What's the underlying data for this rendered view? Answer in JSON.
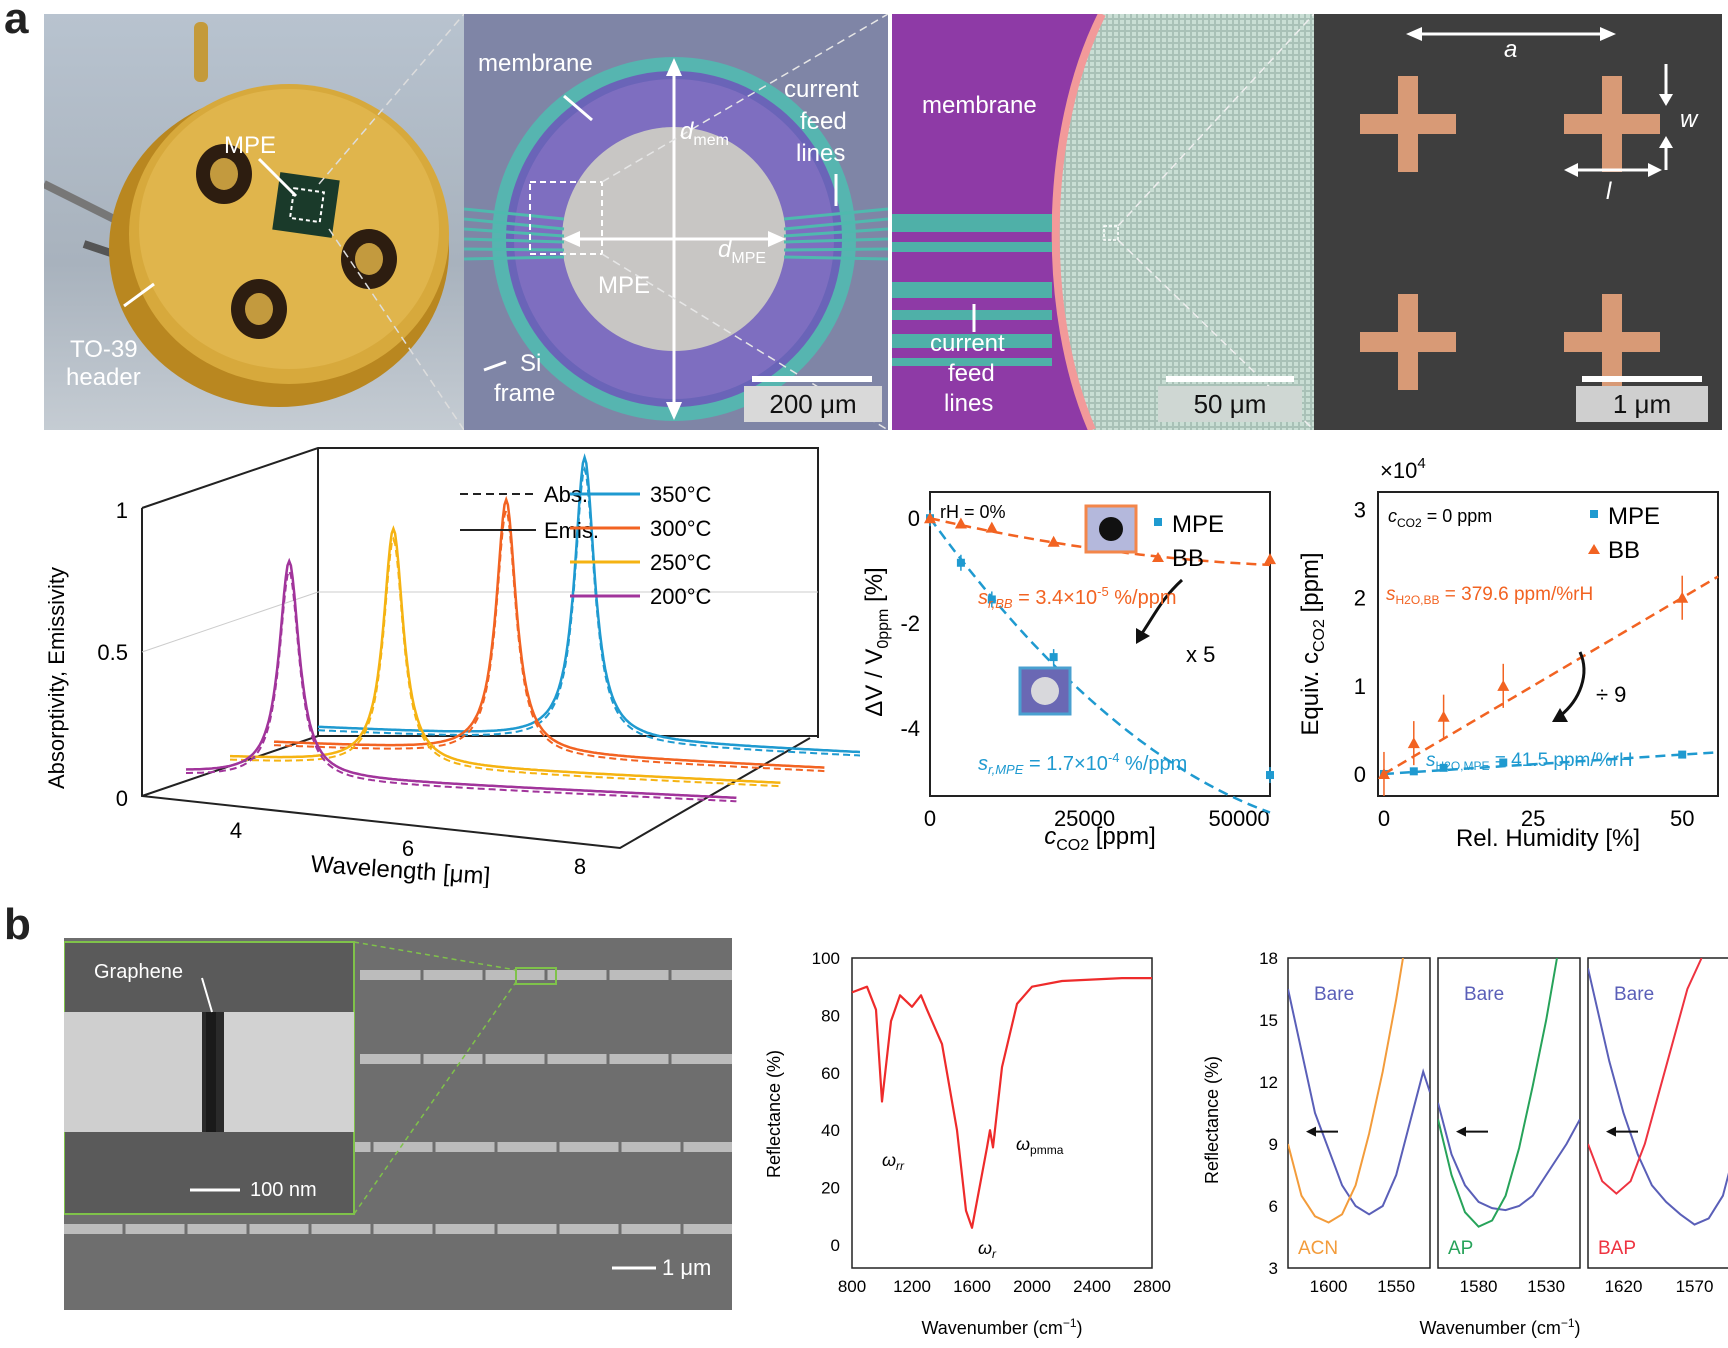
{
  "panel_a": {
    "letter": "a",
    "photo": {
      "mpe_label": "MPE",
      "header_label_1": "TO-39",
      "header_label_2": "header"
    },
    "micro1": {
      "membrane": "membrane",
      "current_1": "current",
      "current_2": "feed",
      "current_3": "lines",
      "d_mem": "d",
      "d_mem_sub": "mem",
      "d_mpe": "d",
      "d_mpe_sub": "MPE",
      "mpe": "MPE",
      "si_1": "Si",
      "si_2": "frame",
      "scale": "200 μm"
    },
    "micro2": {
      "membrane": "membrane",
      "current_1": "current",
      "current_2": "feed",
      "current_3": "lines",
      "scale": "50 μm"
    },
    "micro3": {
      "a": "a",
      "w": "w",
      "l": "l",
      "scale": "1 μm"
    }
  },
  "panel_b": {
    "letter": "b",
    "sem": {
      "graphene": "Graphene",
      "scale_inset": "100 nm",
      "scale_main": "1 μm"
    }
  },
  "chart_data": [
    {
      "type": "line",
      "title": "",
      "xlabel": "Wavelength [μm]",
      "ylabel": "Absorptivity, Emissivity",
      "x_ticks": [
        "4",
        "6",
        "8"
      ],
      "y_ticks": [
        "0",
        "0.5",
        "1"
      ],
      "legend_style": [
        {
          "name": "Abs.",
          "style": "dashed"
        },
        {
          "name": "Emis.",
          "style": "solid"
        }
      ],
      "series": [
        {
          "name": "350°C",
          "color": "#1f9ad0",
          "peak_um": 6.3,
          "peak": 0.98
        },
        {
          "name": "300°C",
          "color": "#f26322",
          "peak_um": 5.9,
          "peak": 0.88
        },
        {
          "name": "250°C",
          "color": "#f5b312",
          "peak_um": 5.1,
          "peak": 0.82
        },
        {
          "name": "200°C",
          "color": "#a1349b",
          "peak_um": 4.4,
          "peak": 0.75
        }
      ]
    },
    {
      "type": "scatter",
      "xlabel": "c_CO2 [ppm]",
      "xlabel_main": "c",
      "xlabel_sub": "CO2",
      "xlabel_unit": " [ppm]",
      "ylabel": "ΔV / V0ppm [%]",
      "annotation": "rH = 0%",
      "x_ticks": [
        "0",
        "25000",
        "50000"
      ],
      "y_ticks": [
        "0",
        "-2",
        "-4"
      ],
      "xlim": [
        0,
        55000
      ],
      "ylim": [
        -5.3,
        0.5
      ],
      "factor": "x 5",
      "series": [
        {
          "name": "MPE",
          "color": "#1f9ad0",
          "marker": "square",
          "x": [
            0,
            5000,
            10000,
            20000,
            55000
          ],
          "y": [
            0,
            -0.85,
            -1.55,
            -2.65,
            -4.9
          ],
          "fit_label": "s r,MPE = 1.7×10-4 %/ppm"
        },
        {
          "name": "BB",
          "color": "#f26322",
          "marker": "triangle",
          "x": [
            0,
            5000,
            10000,
            20000,
            55000
          ],
          "y": [
            0,
            -0.1,
            -0.18,
            -0.45,
            -0.78
          ],
          "fit_label": "s r,BB = 3.4×10-5 %/ppm"
        }
      ]
    },
    {
      "type": "scatter",
      "xlabel": "Rel. Humidity [%]",
      "ylabel": "Equiv. c_CO2 [ppm]",
      "ylabel_main": "Equiv. c",
      "ylabel_sub": "CO2",
      "ylabel_unit": " [ppm]",
      "multiplier": "×10",
      "multiplier_exp": "4",
      "annotation": "c_CO2 = 0 ppm",
      "annotation_main": "c",
      "annotation_sub": "CO2",
      "annotation_rest": " = 0 ppm",
      "x_ticks": [
        "0",
        "25",
        "50"
      ],
      "y_ticks": [
        "0",
        "1",
        "2",
        "3"
      ],
      "xlim": [
        -1,
        56
      ],
      "ylim": [
        -0.25,
        3.2
      ],
      "factor": "÷ 9",
      "series": [
        {
          "name": "MPE",
          "color": "#1f9ad0",
          "marker": "square",
          "x": [
            0,
            5,
            10,
            20,
            50
          ],
          "y": [
            0,
            0.03,
            0.07,
            0.13,
            0.22
          ],
          "fit_label": "s H2O,MPE = 41.5 ppm/%rH"
        },
        {
          "name": "BB",
          "color": "#f26322",
          "marker": "triangle",
          "x": [
            0,
            5,
            10,
            20,
            50
          ],
          "y": [
            0,
            0.35,
            0.65,
            1.0,
            2.0
          ],
          "fit_label": "s H2O,BB = 379.6 ppm/%rH"
        }
      ]
    },
    {
      "type": "line",
      "xlabel": "Wavenumber (cm-1)",
      "ylabel": "Reflectance (%)",
      "x_ticks": [
        "800",
        "1200",
        "1600",
        "2000",
        "2400",
        "2800"
      ],
      "y_ticks": [
        "0",
        "20",
        "40",
        "60",
        "80",
        "100"
      ],
      "xlim": [
        800,
        2800
      ],
      "ylim": [
        -8,
        100
      ],
      "series": [
        {
          "name": "Reflectance",
          "color": "#ee2b2b",
          "x": [
            800,
            900,
            960,
            1000,
            1060,
            1120,
            1200,
            1260,
            1300,
            1400,
            1500,
            1560,
            1600,
            1650,
            1700,
            1720,
            1740,
            1800,
            1900,
            2000,
            2200,
            2600,
            2800
          ],
          "y": [
            88,
            90,
            82,
            50,
            78,
            87,
            83,
            87,
            82,
            70,
            40,
            12,
            6,
            20,
            34,
            40,
            34,
            62,
            84,
            90,
            92,
            93,
            93
          ]
        }
      ],
      "annotations": [
        "ω rr",
        "ω r",
        "ω pmma"
      ]
    },
    {
      "type": "line",
      "xlabel": "Wavenumber (cm-1)",
      "ylabel": "Reflectance (%)",
      "y_ticks": [
        "3",
        "6",
        "9",
        "12",
        "15",
        "18"
      ],
      "ylim": [
        3,
        18
      ],
      "subplots": [
        {
          "label_bare": "Bare",
          "label_ads": "ACN",
          "ads_color": "#f39c3b",
          "x_ticks": [
            "1600",
            "1550"
          ],
          "xlim": [
            1630,
            1525
          ],
          "bare": {
            "x": [
              1630,
              1610,
              1590,
              1580,
              1570,
              1560,
              1550,
              1540,
              1530,
              1525
            ],
            "y": [
              16.5,
              10.5,
              7,
              6,
              5.6,
              6,
              7.5,
              10,
              12.5,
              11.5
            ]
          },
          "ads": {
            "x": [
              1630,
              1620,
              1610,
              1600,
              1590,
              1580,
              1570,
              1560,
              1550,
              1545
            ],
            "y": [
              9,
              6.5,
              5.5,
              5.2,
              5.6,
              7,
              9.5,
              12.5,
              16,
              18
            ]
          }
        },
        {
          "label_bare": "Bare",
          "label_ads": "AP",
          "ads_color": "#27a35a",
          "x_ticks": [
            "1580",
            "1530"
          ],
          "xlim": [
            1610,
            1505
          ],
          "bare": {
            "x": [
              1610,
              1600,
              1590,
              1580,
              1570,
              1560,
              1550,
              1540,
              1530,
              1515,
              1505
            ],
            "y": [
              11,
              8.5,
              7,
              6.2,
              5.9,
              5.8,
              6,
              6.5,
              7.5,
              9,
              10.2
            ]
          },
          "ads": {
            "x": [
              1610,
              1600,
              1590,
              1580,
              1570,
              1560,
              1550,
              1540,
              1530,
              1522
            ],
            "y": [
              10.2,
              7.5,
              5.7,
              5,
              5.3,
              6.5,
              8.8,
              11.8,
              15,
              18
            ]
          }
        },
        {
          "label_bare": "Bare",
          "label_ads": "BAP",
          "ads_color": "#ee3340",
          "x_ticks": [
            "1620",
            "1570"
          ],
          "xlim": [
            1645,
            1545
          ],
          "bare": {
            "x": [
              1645,
              1630,
              1620,
              1610,
              1600,
              1590,
              1580,
              1570,
              1560,
              1550,
              1545
            ],
            "y": [
              17.5,
              13,
              10.5,
              8.5,
              7,
              6.2,
              5.6,
              5.1,
              5.4,
              6.5,
              7.8
            ]
          },
          "ads": {
            "x": [
              1645,
              1635,
              1625,
              1615,
              1605,
              1595,
              1585,
              1575,
              1565
            ],
            "y": [
              9,
              7.2,
              6.6,
              7.2,
              9,
              11.5,
              14,
              16.5,
              18
            ]
          }
        }
      ]
    }
  ]
}
